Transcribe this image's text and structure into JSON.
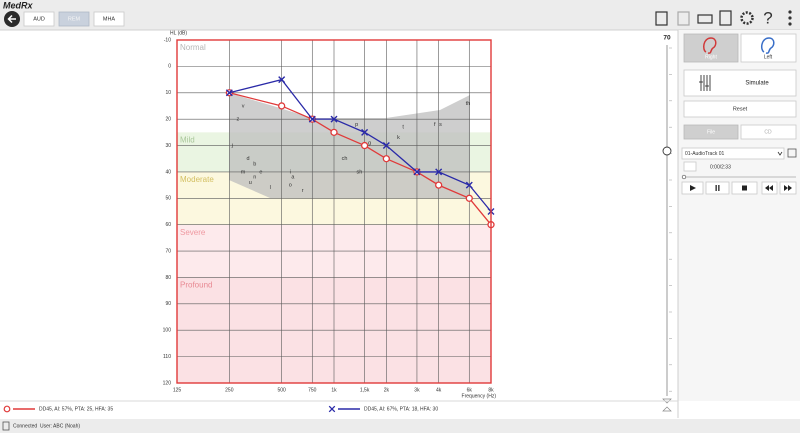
{
  "header": {
    "logo": "MedRx",
    "tabs": [
      "AUD",
      "REM",
      "MHA"
    ]
  },
  "audiogram": {
    "type": "line",
    "y_label": "HL (dB)",
    "x_label": "Frequency (Hz)",
    "x_log": true,
    "y_inverted": true,
    "grid": true,
    "xlim": [
      125,
      8000
    ],
    "xticks": [
      125,
      250,
      500,
      750,
      {
        "value": 1000,
        "label": "1k"
      },
      {
        "value": 1500,
        "label": "1,5k"
      },
      {
        "value": 2000,
        "label": "2k"
      },
      {
        "value": 3000,
        "label": "3k"
      },
      {
        "value": 4000,
        "label": "4k"
      },
      {
        "value": 6000,
        "label": "6k"
      },
      {
        "value": 8000,
        "label": "8k"
      }
    ],
    "ylim": [
      -10,
      120
    ],
    "yticks": [
      -10,
      0,
      10,
      20,
      30,
      40,
      50,
      60,
      70,
      80,
      90,
      100,
      110,
      120
    ],
    "x": [
      250,
      500,
      750,
      1000,
      1500,
      2000,
      3000,
      4000,
      6000,
      8000
    ],
    "series": [
      {
        "name": "DD45, AI: 57%, PTA: 25, HFA: 35",
        "color": "#e03a3a",
        "marker": "circle",
        "values": [
          10,
          15,
          20,
          25,
          30,
          35,
          40,
          45,
          50,
          60
        ]
      },
      {
        "name": "DD45, AI: 67%, PTA: 18, HFA: 30",
        "color": "#2a2aa8",
        "marker": "x",
        "values": [
          10,
          5,
          20,
          20,
          25,
          30,
          40,
          40,
          45,
          55
        ]
      }
    ],
    "bands": [
      {
        "name": "Normal",
        "from": -10,
        "to": 25,
        "color": "#ffffff",
        "label_color": "#b5b5b5"
      },
      {
        "name": "Mild",
        "from": 25,
        "to": 40,
        "color": "#eaf5e2",
        "label_color": "#a9c79a"
      },
      {
        "name": "Moderate",
        "from": 40,
        "to": 60,
        "color": "#fcf8df",
        "label_color": "#d3bf62"
      },
      {
        "name": "Severe",
        "from": 60,
        "to": 80,
        "color": "#fdeaec",
        "label_color": "#ef98a0"
      },
      {
        "name": "Profound",
        "from": 80,
        "to": 120,
        "color": "#fbe1e4",
        "label_color": "#e88993"
      }
    ],
    "phonemes": [
      {
        "label": "v",
        "x": 300,
        "y": 15
      },
      {
        "label": "z",
        "x": 280,
        "y": 20
      },
      {
        "label": "j",
        "x": 260,
        "y": 30
      },
      {
        "label": "d",
        "x": 320,
        "y": 35
      },
      {
        "label": "b",
        "x": 350,
        "y": 37
      },
      {
        "label": "m",
        "x": 300,
        "y": 40
      },
      {
        "label": "n",
        "x": 350,
        "y": 42
      },
      {
        "label": "e",
        "x": 380,
        "y": 40
      },
      {
        "label": "u",
        "x": 330,
        "y": 44
      },
      {
        "label": "l",
        "x": 430,
        "y": 46
      },
      {
        "label": "i",
        "x": 560,
        "y": 40
      },
      {
        "label": "a",
        "x": 580,
        "y": 42
      },
      {
        "label": "o",
        "x": 560,
        "y": 45
      },
      {
        "label": "r",
        "x": 660,
        "y": 47
      },
      {
        "label": "ch",
        "x": 1150,
        "y": 35
      },
      {
        "label": "sh",
        "x": 1400,
        "y": 40
      },
      {
        "label": "p",
        "x": 1350,
        "y": 22
      },
      {
        "label": "g",
        "x": 1600,
        "y": 29
      },
      {
        "label": "k",
        "x": 2350,
        "y": 27
      },
      {
        "label": "t",
        "x": 2500,
        "y": 23
      },
      {
        "label": "f",
        "x": 3800,
        "y": 22
      },
      {
        "label": "s",
        "x": 4100,
        "y": 22
      },
      {
        "label": "th",
        "x": 5900,
        "y": 14
      }
    ]
  },
  "level": 70,
  "panel": {
    "ears": [
      "Right",
      "Left"
    ],
    "simulate": "Simulate",
    "reset": "Reset",
    "sources": [
      "File",
      "CD"
    ],
    "track": "01-AudioTrack 01",
    "time": "0:00/2:33"
  },
  "status": {
    "connection": "Connected",
    "user": "User: ABC (Noah)"
  }
}
